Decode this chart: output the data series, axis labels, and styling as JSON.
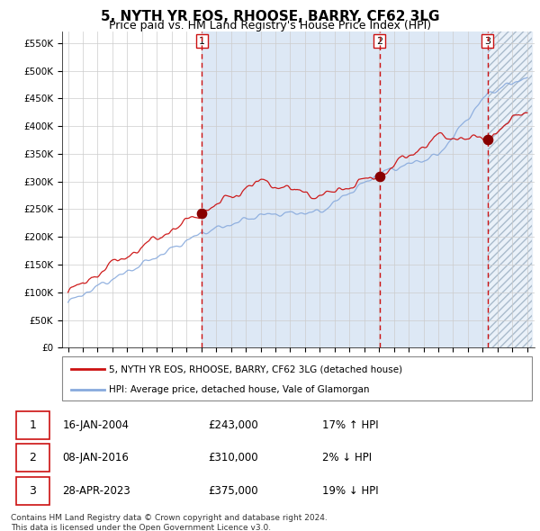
{
  "title": "5, NYTH YR EOS, RHOOSE, BARRY, CF62 3LG",
  "subtitle": "Price paid vs. HM Land Registry's House Price Index (HPI)",
  "ylim": [
    0,
    570000
  ],
  "yticks": [
    0,
    50000,
    100000,
    150000,
    200000,
    250000,
    300000,
    350000,
    400000,
    450000,
    500000,
    550000
  ],
  "ytick_labels": [
    "£0",
    "£50K",
    "£100K",
    "£150K",
    "£200K",
    "£250K",
    "£300K",
    "£350K",
    "£400K",
    "£450K",
    "£500K",
    "£550K"
  ],
  "x_start_year": 1995,
  "x_end_year": 2026,
  "sale1_date": 2004.04,
  "sale1_price": 243000,
  "sale2_date": 2016.03,
  "sale2_price": 310000,
  "sale3_date": 2023.32,
  "sale3_price": 375000,
  "hpi_color": "#88aadd",
  "property_color": "#cc1111",
  "sale_dot_color": "#880000",
  "vline_color": "#cc1111",
  "background_fill": "#dde8f5",
  "legend1_text": "5, NYTH YR EOS, RHOOSE, BARRY, CF62 3LG (detached house)",
  "legend2_text": "HPI: Average price, detached house, Vale of Glamorgan",
  "table_row1": [
    "1",
    "16-JAN-2004",
    "£243,000",
    "17% ↑ HPI"
  ],
  "table_row2": [
    "2",
    "08-JAN-2016",
    "£310,000",
    "2% ↓ HPI"
  ],
  "table_row3": [
    "3",
    "28-APR-2023",
    "£375,000",
    "19% ↓ HPI"
  ],
  "footer": "Contains HM Land Registry data © Crown copyright and database right 2024.\nThis data is licensed under the Open Government Licence v3.0.",
  "grid_color": "#cccccc",
  "title_fontsize": 11,
  "subtitle_fontsize": 9,
  "tick_fontsize": 7.5
}
